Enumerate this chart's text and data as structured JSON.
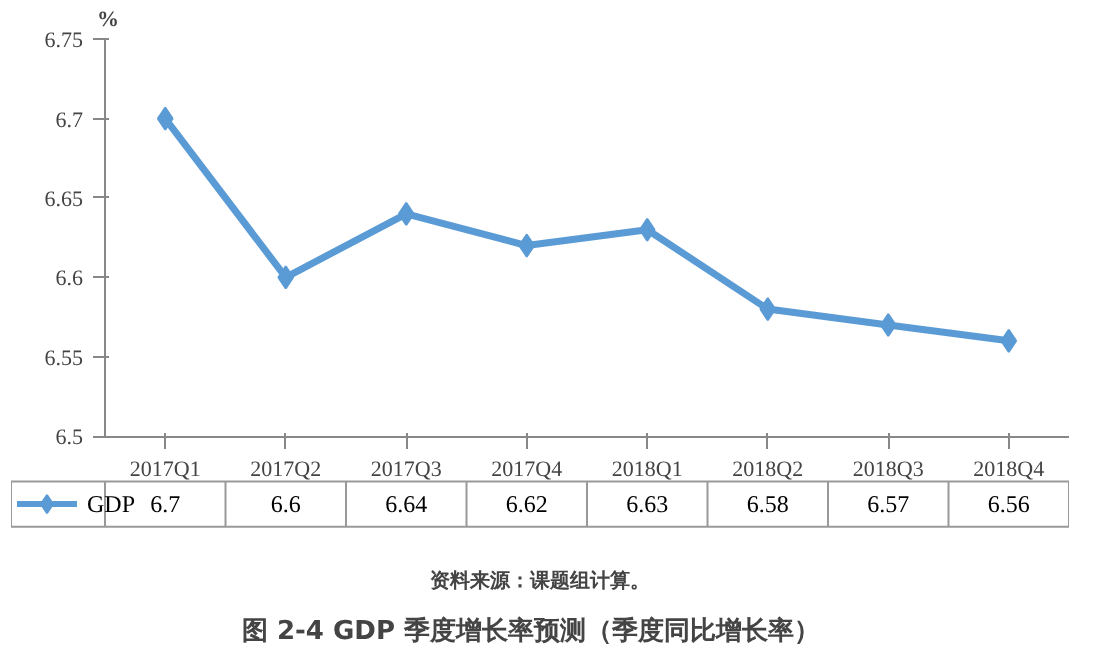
{
  "chart_data": {
    "type": "line",
    "title": "图 2-4   GDP 季度增长率预测（季度同比增长率）",
    "ylabel": "%",
    "annotations": [
      "资料来源：课题组计算。"
    ],
    "categories": [
      "2017Q1",
      "2017Q2",
      "2017Q3",
      "2017Q4",
      "2018Q1",
      "2018Q2",
      "2018Q3",
      "2018Q4"
    ],
    "series": [
      {
        "name": "GDP",
        "color": "#5b9bd5",
        "values": [
          6.7,
          6.6,
          6.64,
          6.62,
          6.63,
          6.58,
          6.57,
          6.56
        ]
      }
    ],
    "ylim": [
      6.5,
      6.75
    ],
    "yticks": [
      6.5,
      6.55,
      6.6,
      6.65,
      6.7,
      6.75
    ],
    "grid": false,
    "marker": "diamond",
    "line_style": "solid",
    "data_labels": true,
    "legend": "bottom"
  }
}
